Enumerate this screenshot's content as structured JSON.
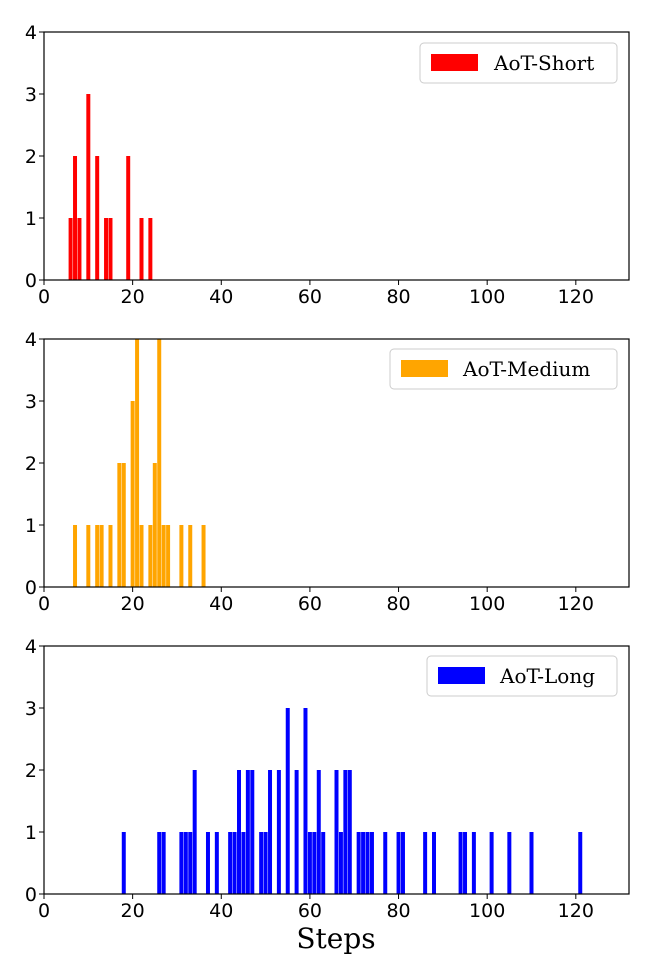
{
  "chart_data": [
    {
      "type": "bar",
      "xlim": [
        0,
        132
      ],
      "ylim": [
        0,
        4
      ],
      "xticks": [
        "0",
        "20",
        "40",
        "60",
        "80",
        "100",
        "120"
      ],
      "yticks": [
        "0",
        "1",
        "2",
        "3",
        "4"
      ],
      "xlabel": "",
      "legend": {
        "label": "AoT-Short",
        "position": "top-right"
      },
      "color": "#ff0000",
      "x": [
        6,
        7,
        8,
        10,
        12,
        14,
        15,
        19,
        22,
        24
      ],
      "values": [
        1,
        2,
        1,
        3,
        2,
        1,
        1,
        2,
        1,
        1
      ]
    },
    {
      "type": "bar",
      "xlim": [
        0,
        132
      ],
      "ylim": [
        0,
        4
      ],
      "xticks": [
        "0",
        "20",
        "40",
        "60",
        "80",
        "100",
        "120"
      ],
      "yticks": [
        "0",
        "1",
        "2",
        "3",
        "4"
      ],
      "xlabel": "",
      "legend": {
        "label": "AoT-Medium",
        "position": "top-right"
      },
      "color": "#ffa500",
      "x": [
        7,
        10,
        12,
        13,
        15,
        17,
        18,
        20,
        21,
        22,
        24,
        25,
        26,
        27,
        28,
        31,
        33,
        36
      ],
      "values": [
        1,
        1,
        1,
        1,
        1,
        2,
        2,
        3,
        4,
        1,
        1,
        2,
        4,
        1,
        1,
        1,
        1,
        1
      ]
    },
    {
      "type": "bar",
      "xlim": [
        0,
        132
      ],
      "ylim": [
        0,
        4
      ],
      "xticks": [
        "0",
        "20",
        "40",
        "60",
        "80",
        "100",
        "120"
      ],
      "yticks": [
        "0",
        "1",
        "2",
        "3",
        "4"
      ],
      "xlabel": "Steps",
      "legend": {
        "label": "AoT-Long",
        "position": "top-right"
      },
      "color": "#0000ff",
      "x": [
        18,
        26,
        27,
        31,
        32,
        33,
        34,
        37,
        39,
        42,
        43,
        44,
        45,
        46,
        47,
        49,
        50,
        51,
        53,
        55,
        57,
        59,
        60,
        61,
        62,
        63,
        66,
        67,
        68,
        69,
        71,
        72,
        73,
        74,
        77,
        80,
        81,
        86,
        88,
        94,
        95,
        97,
        101,
        105,
        110,
        121
      ],
      "values": [
        1,
        1,
        1,
        1,
        1,
        1,
        2,
        1,
        1,
        1,
        1,
        2,
        1,
        2,
        2,
        1,
        1,
        2,
        2,
        3,
        2,
        3,
        1,
        1,
        2,
        1,
        2,
        1,
        2,
        2,
        1,
        1,
        1,
        1,
        1,
        1,
        1,
        1,
        1,
        1,
        1,
        1,
        1,
        1,
        1,
        1
      ]
    }
  ]
}
